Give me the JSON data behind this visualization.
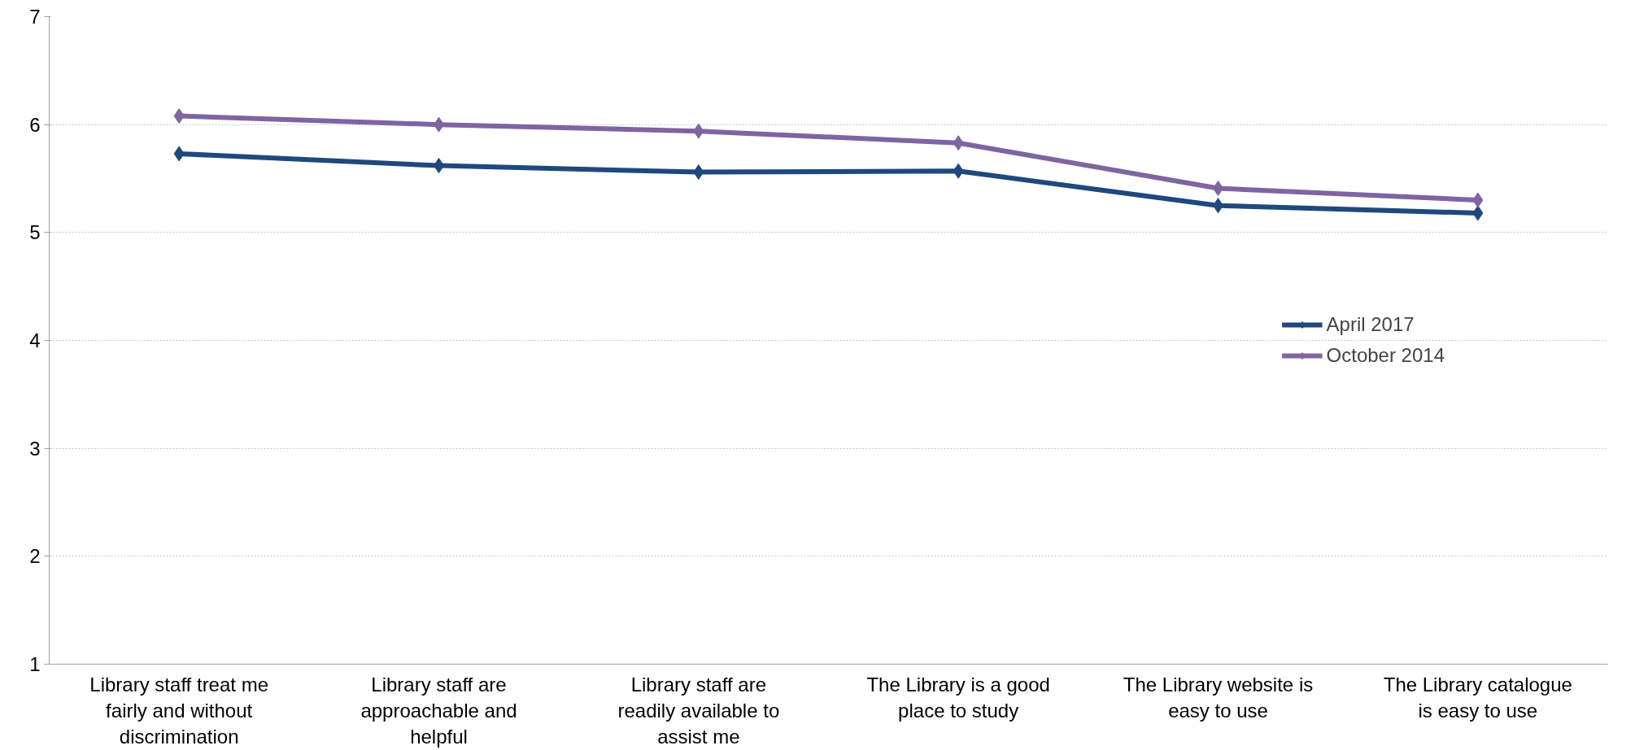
{
  "chart_data": {
    "type": "line",
    "categories": [
      "Library staff treat me fairly and without discrimination",
      "Library staff are approachable and helpful",
      "Library staff are readily available to assist me",
      "The Library is a good place to study",
      "The Library website is easy to use",
      "The Library catalogue is easy to use"
    ],
    "series": [
      {
        "name": "April 2017",
        "color": "#1f497d",
        "values": [
          5.73,
          5.62,
          5.56,
          5.57,
          5.25,
          5.18
        ]
      },
      {
        "name": "October 2014",
        "color": "#8064a2",
        "values": [
          6.08,
          6.0,
          5.94,
          5.83,
          5.41,
          5.3
        ]
      }
    ],
    "ylim": [
      1,
      7
    ],
    "yticks": [
      1,
      2,
      3,
      4,
      5,
      6,
      7
    ],
    "grid": "y",
    "legend": "right",
    "marker": "diamond",
    "line_style": "solid"
  }
}
